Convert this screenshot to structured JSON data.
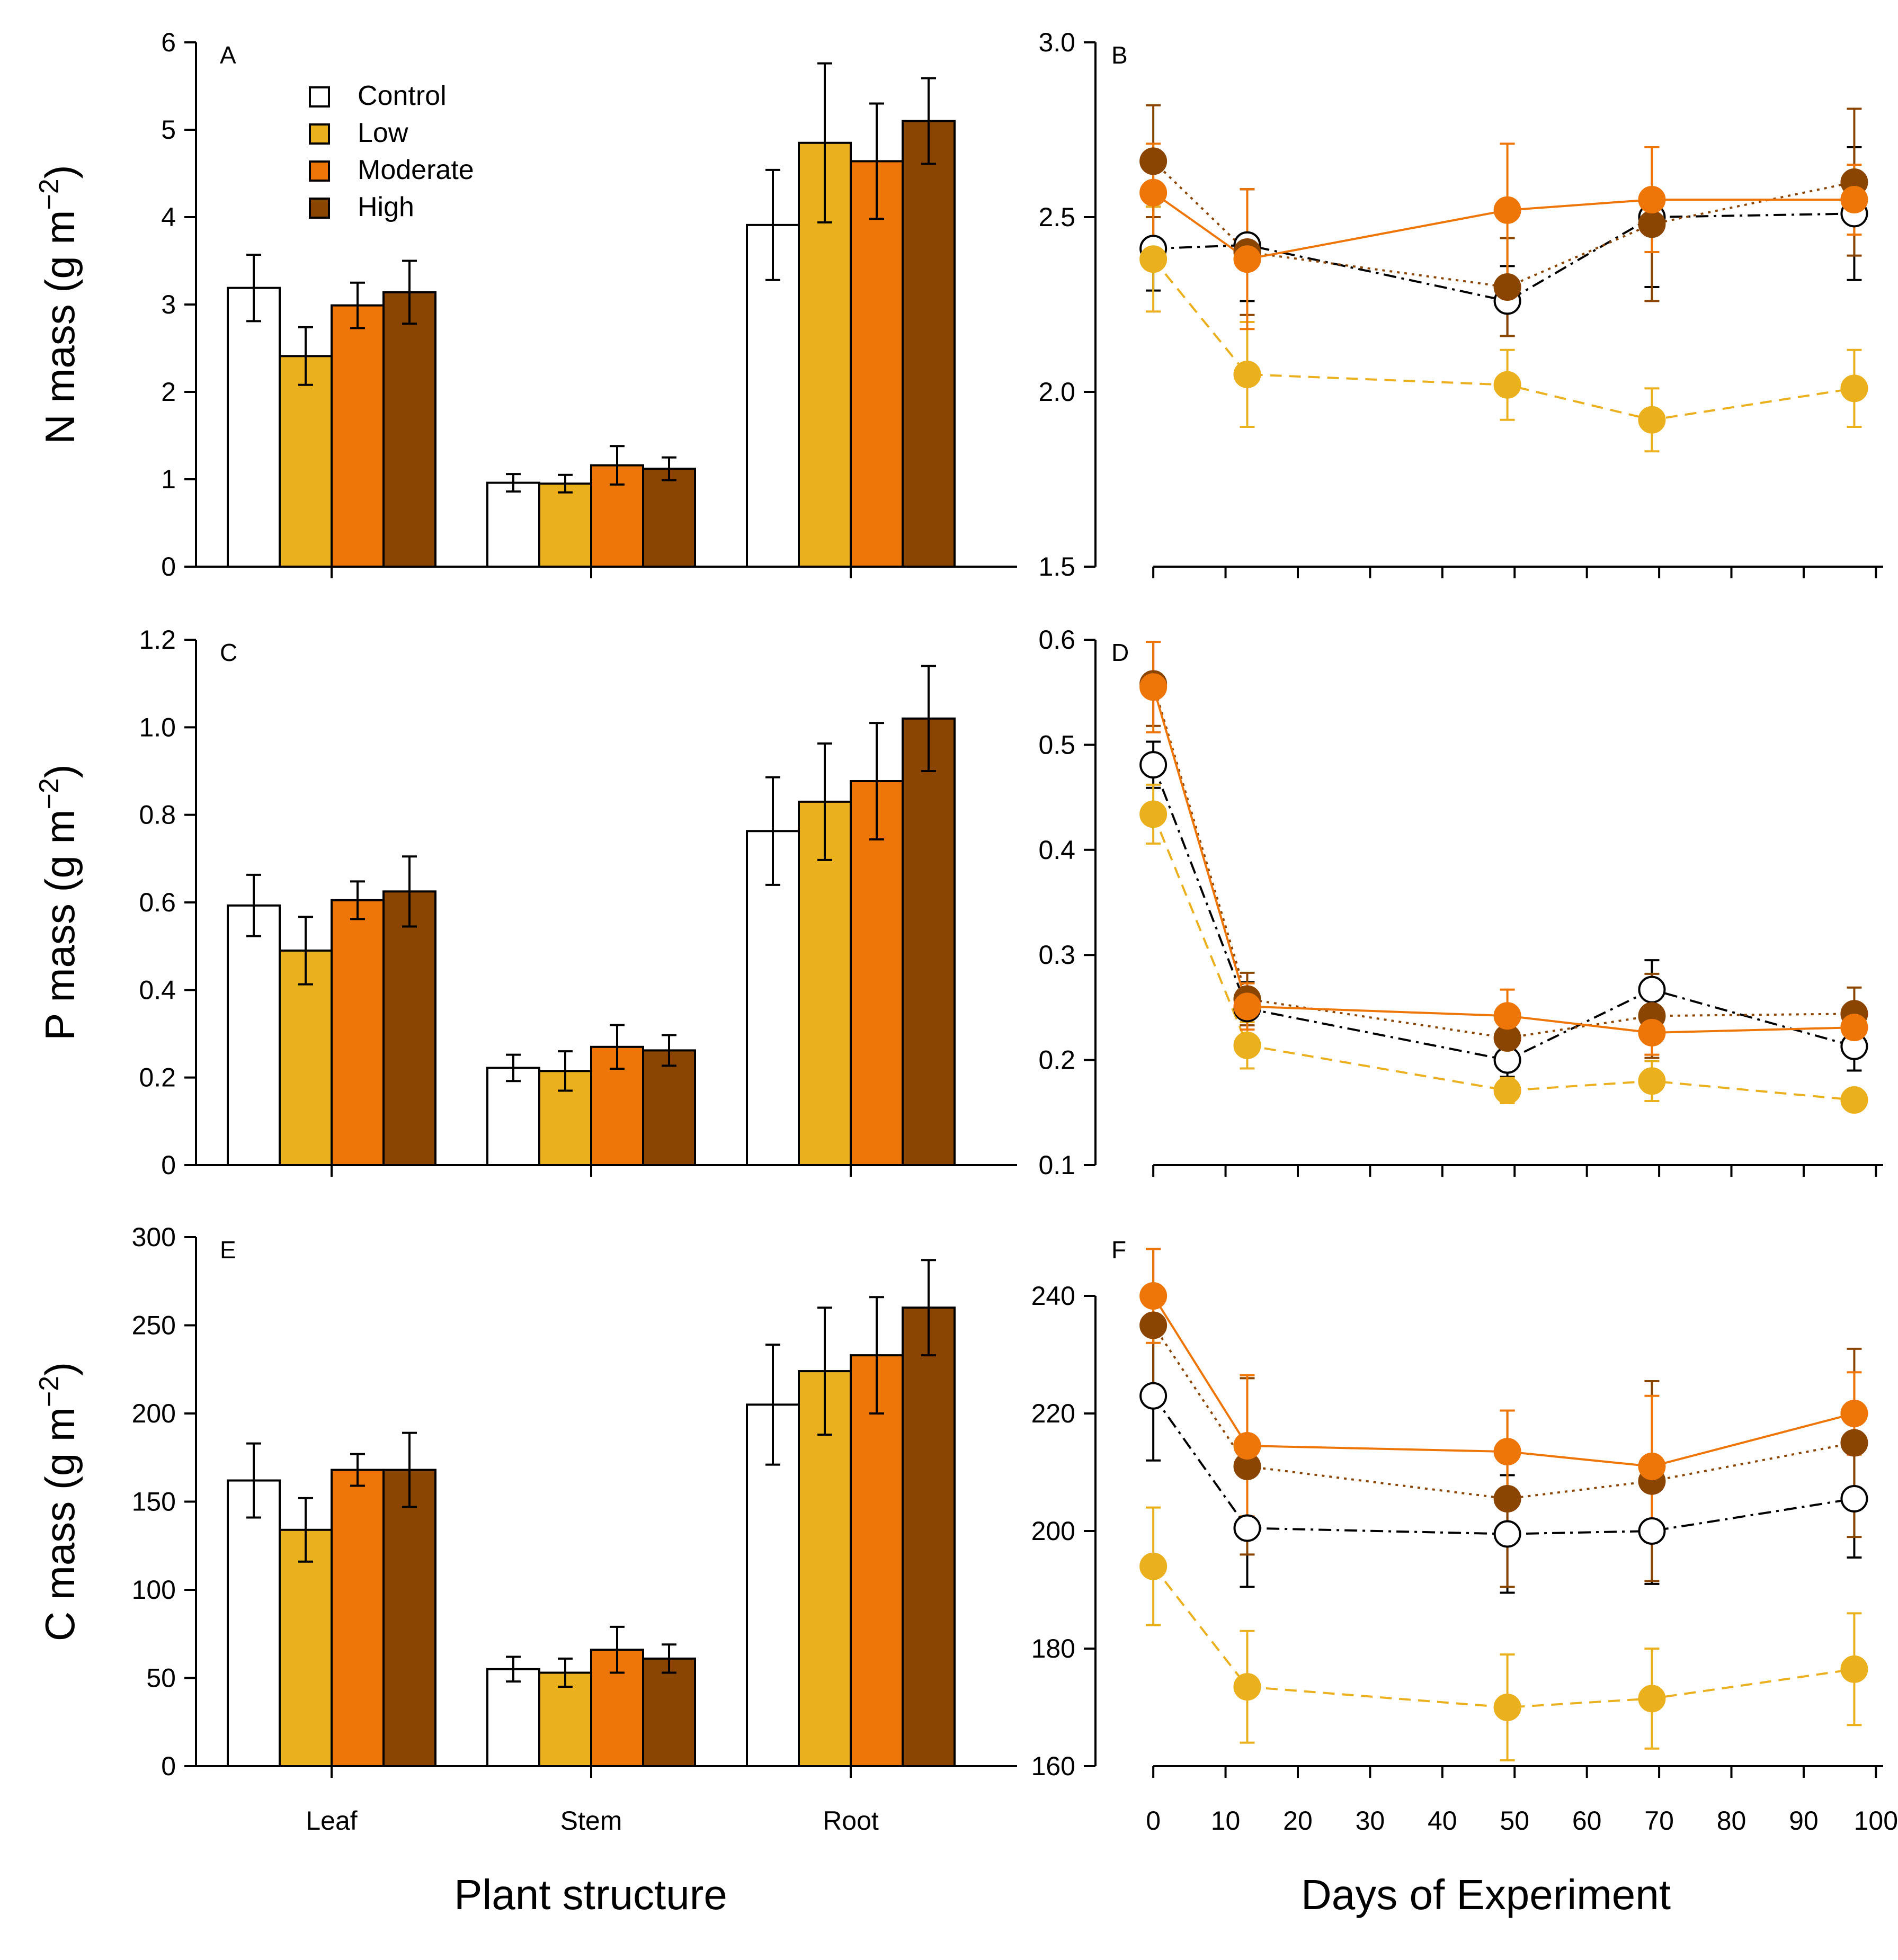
{
  "figure": {
    "xlabel_left": "Plant structure",
    "xlabel_right": "Days of Experiment",
    "legend": [
      {
        "label": "Control",
        "color": "#ffffff"
      },
      {
        "label": "Low",
        "color": "#ebb01e"
      },
      {
        "label": "Moderate",
        "color": "#ee7508"
      },
      {
        "label": "High",
        "color": "#8b4502"
      }
    ]
  },
  "colors": {
    "control": "#ffffff",
    "low": "#ebb01e",
    "moderate": "#ee7508",
    "high": "#8b4502",
    "control_line": "#000000"
  },
  "chart_data": [
    {
      "id": "A",
      "type": "bar",
      "panel_label": "A",
      "ylabel": "N mass",
      "ylabel_unit": "(g m",
      "ylabel_exp": "−2",
      "ylabel_close": ")",
      "categories": [
        "Leaf",
        "Stem",
        "Root"
      ],
      "ylim": [
        0,
        6
      ],
      "yticks": [
        0,
        1,
        2,
        3,
        4,
        5,
        6
      ],
      "ytick_labels": [
        "0",
        "1",
        "2",
        "3",
        "4",
        "5",
        "6"
      ],
      "series": [
        {
          "name": "Control",
          "values": [
            3.19,
            0.96,
            3.91
          ],
          "err": [
            0.38,
            0.1,
            0.63
          ]
        },
        {
          "name": "Low",
          "values": [
            2.41,
            0.95,
            4.85
          ],
          "err": [
            0.33,
            0.1,
            0.91
          ]
        },
        {
          "name": "Moderate",
          "values": [
            2.99,
            1.16,
            4.64
          ],
          "err": [
            0.26,
            0.22,
            0.66
          ]
        },
        {
          "name": "High",
          "values": [
            3.14,
            1.12,
            5.1
          ],
          "err": [
            0.36,
            0.13,
            0.49
          ]
        }
      ]
    },
    {
      "id": "B",
      "type": "line",
      "panel_label": "B",
      "x": [
        0,
        13,
        49,
        69,
        97
      ],
      "ylim": [
        1.5,
        3.0
      ],
      "yticks": [
        1.5,
        2.0,
        2.5,
        3.0
      ],
      "ytick_labels": [
        "1.5",
        "2.0",
        "2.5",
        "3.0"
      ],
      "series": [
        {
          "name": "Control",
          "values": [
            2.41,
            2.42,
            2.26,
            2.5,
            2.51
          ],
          "err": [
            0.12,
            0.16,
            0.1,
            0.2,
            0.19
          ]
        },
        {
          "name": "Low",
          "values": [
            2.38,
            2.05,
            2.02,
            1.92,
            2.01
          ],
          "err": [
            0.15,
            0.15,
            0.1,
            0.09,
            0.11
          ]
        },
        {
          "name": "High",
          "values": [
            2.66,
            2.4,
            2.3,
            2.48,
            2.6
          ],
          "err": [
            0.16,
            0.18,
            0.14,
            0.22,
            0.21
          ]
        },
        {
          "name": "Moderate",
          "values": [
            2.57,
            2.38,
            2.52,
            2.55,
            2.55
          ],
          "err": [
            0.14,
            0.2,
            0.19,
            0.15,
            0.1
          ]
        }
      ]
    },
    {
      "id": "C",
      "type": "bar",
      "panel_label": "C",
      "ylabel": "P mass",
      "ylabel_unit": "(g m",
      "ylabel_exp": "−2",
      "ylabel_close": ")",
      "categories": [
        "Leaf",
        "Stem",
        "Root"
      ],
      "ylim": [
        0,
        1.2
      ],
      "yticks": [
        0,
        0.2,
        0.4,
        0.6,
        0.8,
        1.0,
        1.2
      ],
      "ytick_labels": [
        "0",
        "0.2",
        "0.4",
        "0.6",
        "0.8",
        "1.0",
        "1.2"
      ],
      "series": [
        {
          "name": "Control",
          "values": [
            0.593,
            0.222,
            0.763
          ],
          "err": [
            0.07,
            0.03,
            0.123
          ]
        },
        {
          "name": "Low",
          "values": [
            0.49,
            0.215,
            0.83
          ],
          "err": [
            0.077,
            0.045,
            0.133
          ]
        },
        {
          "name": "Moderate",
          "values": [
            0.605,
            0.27,
            0.877
          ],
          "err": [
            0.043,
            0.05,
            0.133
          ]
        },
        {
          "name": "High",
          "values": [
            0.625,
            0.262,
            1.02
          ],
          "err": [
            0.08,
            0.035,
            0.12
          ]
        }
      ]
    },
    {
      "id": "D",
      "type": "line",
      "panel_label": "D",
      "x": [
        0,
        13,
        49,
        69,
        97
      ],
      "ylim": [
        0.1,
        0.6
      ],
      "yticks": [
        0.1,
        0.2,
        0.3,
        0.4,
        0.5,
        0.6
      ],
      "ytick_labels": [
        "0.1",
        "0.2",
        "0.3",
        "0.4",
        "0.5",
        "0.6"
      ],
      "series": [
        {
          "name": "Control",
          "values": [
            0.481,
            0.249,
            0.2,
            0.267,
            0.213
          ],
          "err": [
            0.022,
            0.025,
            0.016,
            0.028,
            0.023
          ]
        },
        {
          "name": "Low",
          "values": [
            0.434,
            0.214,
            0.171,
            0.18,
            0.162
          ],
          "err": [
            0.028,
            0.022,
            0.012,
            0.019,
            0.01
          ]
        },
        {
          "name": "High",
          "values": [
            0.558,
            0.258,
            0.221,
            0.242,
            0.244
          ],
          "err": [
            0.04,
            0.025,
            0.02,
            0.04,
            0.025
          ]
        },
        {
          "name": "Moderate",
          "values": [
            0.555,
            0.251,
            0.242,
            0.226,
            0.231
          ],
          "err": [
            0.043,
            0.022,
            0.025,
            0.021,
            0.022
          ]
        }
      ]
    },
    {
      "id": "E",
      "type": "bar",
      "panel_label": "E",
      "ylabel": "C mass",
      "ylabel_unit": "(g m",
      "ylabel_exp": "−2",
      "ylabel_close": ")",
      "categories": [
        "Leaf",
        "Stem",
        "Root"
      ],
      "ylim": [
        0,
        300
      ],
      "yticks": [
        0,
        50,
        100,
        150,
        200,
        250,
        300
      ],
      "ytick_labels": [
        "0",
        "50",
        "100",
        "150",
        "200",
        "250",
        "300"
      ],
      "series": [
        {
          "name": "Control",
          "values": [
            162,
            55,
            205
          ],
          "err": [
            21,
            7,
            34
          ]
        },
        {
          "name": "Low",
          "values": [
            134,
            53,
            224
          ],
          "err": [
            18,
            8,
            36
          ]
        },
        {
          "name": "Moderate",
          "values": [
            168,
            66,
            233
          ],
          "err": [
            9,
            13,
            33
          ]
        },
        {
          "name": "High",
          "values": [
            168,
            61,
            260
          ],
          "err": [
            21,
            8,
            27
          ]
        }
      ]
    },
    {
      "id": "F",
      "type": "line",
      "panel_label": "F",
      "x": [
        0,
        13,
        49,
        69,
        97
      ],
      "xlabel": "Days of Experiment",
      "xlim": [
        -8,
        101
      ],
      "xticks": [
        0,
        10,
        20,
        30,
        40,
        50,
        60,
        70,
        80,
        90,
        100
      ],
      "xtick_labels": [
        "0",
        "10",
        "20",
        "30",
        "40",
        "50",
        "60",
        "70",
        "80",
        "90",
        "100"
      ],
      "ylim": [
        160,
        250
      ],
      "yticks": [
        160,
        180,
        200,
        220,
        240
      ],
      "ytick_labels": [
        "160",
        "180",
        "200",
        "220",
        "240"
      ],
      "series": [
        {
          "name": "Control",
          "values": [
            223,
            200.5,
            199.5,
            200,
            205.5
          ],
          "err": [
            11,
            10,
            10,
            9,
            10
          ]
        },
        {
          "name": "Low",
          "values": [
            194,
            173.5,
            170,
            171.5,
            176.5
          ],
          "err": [
            10,
            9.5,
            9,
            8.5,
            9.5
          ]
        },
        {
          "name": "High",
          "values": [
            235,
            211,
            205.5,
            208.5,
            215
          ],
          "err": [
            13,
            15,
            15,
            17,
            16
          ]
        },
        {
          "name": "Moderate",
          "values": [
            240,
            214.5,
            213.5,
            211,
            220
          ],
          "err": [
            8,
            12,
            7,
            12,
            7
          ]
        }
      ]
    }
  ]
}
